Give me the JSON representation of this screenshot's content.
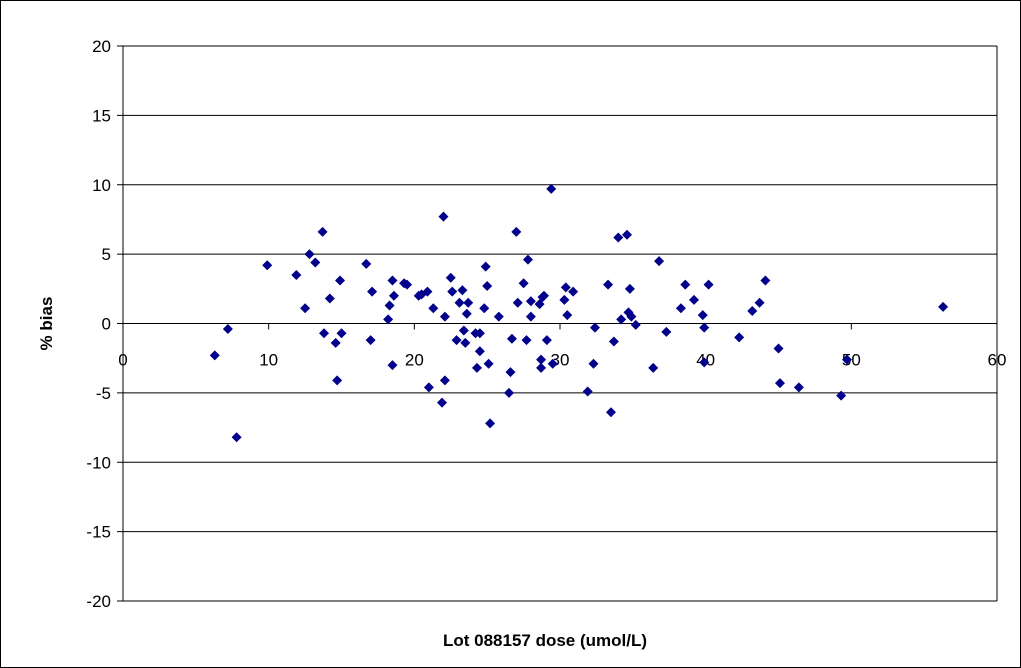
{
  "chart_data": {
    "type": "scatter",
    "title": "",
    "xlabel": "Lot 088157 dose (umol/L)",
    "ylabel": "% bias",
    "xlim": [
      0,
      60
    ],
    "ylim": [
      -20,
      20
    ],
    "x_ticks": [
      "0",
      "10",
      "20",
      "30",
      "40",
      "50",
      "60"
    ],
    "y_ticks": [
      "20",
      "15",
      "10",
      "5",
      "0",
      "-5",
      "-10",
      "-15",
      "-20"
    ],
    "grid": "horizontal",
    "legend": "none",
    "marker_color": "#00008B",
    "marker_shape": "diamond",
    "series": [
      {
        "points": [
          [
            6.3,
            -2.3
          ],
          [
            7.2,
            -0.4
          ],
          [
            7.8,
            -8.2
          ],
          [
            9.9,
            4.2
          ],
          [
            11.9,
            3.5
          ],
          [
            12.5,
            1.1
          ],
          [
            12.8,
            5.0
          ],
          [
            13.2,
            4.4
          ],
          [
            13.7,
            6.6
          ],
          [
            13.8,
            -0.7
          ],
          [
            14.2,
            1.8
          ],
          [
            14.6,
            -1.4
          ],
          [
            14.7,
            -4.1
          ],
          [
            14.9,
            3.1
          ],
          [
            15.0,
            -0.7
          ],
          [
            16.7,
            4.3
          ],
          [
            17.0,
            -1.2
          ],
          [
            17.1,
            2.3
          ],
          [
            18.2,
            0.3
          ],
          [
            18.3,
            1.3
          ],
          [
            18.5,
            3.1
          ],
          [
            18.5,
            -3.0
          ],
          [
            18.6,
            2.0
          ],
          [
            19.3,
            2.9
          ],
          [
            19.5,
            2.8
          ],
          [
            20.3,
            2.0
          ],
          [
            20.5,
            2.1
          ],
          [
            20.9,
            2.3
          ],
          [
            21.0,
            -4.6
          ],
          [
            21.3,
            1.1
          ],
          [
            21.9,
            -5.7
          ],
          [
            22.0,
            7.7
          ],
          [
            22.1,
            0.5
          ],
          [
            22.1,
            -4.1
          ],
          [
            22.5,
            3.3
          ],
          [
            22.6,
            2.3
          ],
          [
            22.9,
            -1.2
          ],
          [
            23.1,
            1.5
          ],
          [
            23.3,
            2.4
          ],
          [
            23.4,
            -0.5
          ],
          [
            23.5,
            -1.4
          ],
          [
            23.6,
            0.7
          ],
          [
            23.7,
            1.5
          ],
          [
            24.2,
            -0.7
          ],
          [
            24.3,
            -3.2
          ],
          [
            24.5,
            -0.7
          ],
          [
            24.5,
            -2.0
          ],
          [
            24.8,
            1.1
          ],
          [
            24.9,
            4.1
          ],
          [
            25.0,
            2.7
          ],
          [
            25.1,
            -2.9
          ],
          [
            25.2,
            -7.2
          ],
          [
            25.8,
            0.5
          ],
          [
            26.5,
            -5.0
          ],
          [
            26.6,
            -3.5
          ],
          [
            26.7,
            -1.1
          ],
          [
            27.0,
            6.6
          ],
          [
            27.1,
            1.5
          ],
          [
            27.5,
            2.9
          ],
          [
            27.7,
            -1.2
          ],
          [
            27.8,
            4.6
          ],
          [
            28.0,
            0.5
          ],
          [
            28.0,
            1.6
          ],
          [
            28.6,
            1.4
          ],
          [
            28.7,
            -2.6
          ],
          [
            28.7,
            -3.2
          ],
          [
            28.8,
            1.9
          ],
          [
            28.9,
            2.0
          ],
          [
            29.1,
            -1.2
          ],
          [
            29.4,
            9.7
          ],
          [
            29.5,
            -2.9
          ],
          [
            30.3,
            1.7
          ],
          [
            30.4,
            2.6
          ],
          [
            30.5,
            0.6
          ],
          [
            30.9,
            2.3
          ],
          [
            31.9,
            -4.9
          ],
          [
            32.3,
            -2.9
          ],
          [
            32.4,
            -0.3
          ],
          [
            33.3,
            2.8
          ],
          [
            33.5,
            -6.4
          ],
          [
            33.7,
            -1.3
          ],
          [
            34.0,
            6.2
          ],
          [
            34.2,
            0.3
          ],
          [
            34.6,
            6.4
          ],
          [
            34.7,
            0.8
          ],
          [
            34.8,
            2.5
          ],
          [
            34.9,
            0.5
          ],
          [
            35.2,
            -0.1
          ],
          [
            36.4,
            -3.2
          ],
          [
            36.8,
            4.5
          ],
          [
            37.3,
            -0.6
          ],
          [
            38.3,
            1.1
          ],
          [
            38.6,
            2.8
          ],
          [
            39.2,
            1.7
          ],
          [
            39.8,
            0.6
          ],
          [
            39.9,
            -0.3
          ],
          [
            39.9,
            -2.8
          ],
          [
            40.2,
            2.8
          ],
          [
            42.3,
            -1.0
          ],
          [
            43.2,
            0.9
          ],
          [
            43.7,
            1.5
          ],
          [
            44.1,
            3.1
          ],
          [
            45.0,
            -1.8
          ],
          [
            45.1,
            -4.3
          ],
          [
            46.4,
            -4.6
          ],
          [
            49.3,
            -5.2
          ],
          [
            49.7,
            -2.6
          ],
          [
            56.3,
            1.2
          ]
        ]
      }
    ]
  }
}
